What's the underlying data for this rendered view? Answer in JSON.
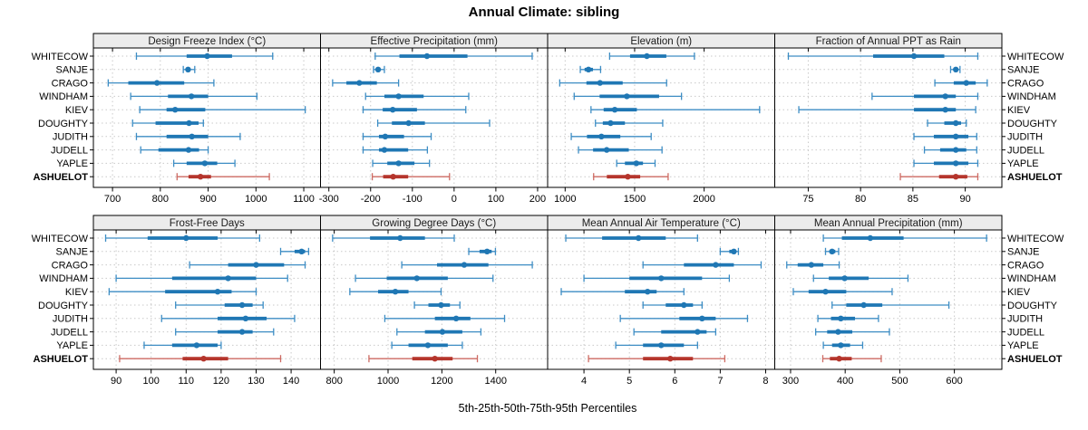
{
  "title": "Annual Climate: sibling",
  "caption": "5th-25th-50th-75th-95th Percentiles",
  "percentile_labels": [
    "5th",
    "25th",
    "50th",
    "75th",
    "95th"
  ],
  "stations": [
    "WHITECOW",
    "SANJE",
    "CRAGO",
    "WINDHAM",
    "KIEV",
    "DOUGHTY",
    "JUDITH",
    "JUDELL",
    "YAPLE",
    "ASHUELOT"
  ],
  "highlight_station": "ASHUELOT",
  "colors": {
    "series_blue": "#1f77b4",
    "series_blue_light": "#3d8dc4",
    "highlight_red": "#b5352c",
    "highlight_red_light": "#cd6a62",
    "grid": "#c9c9c9",
    "strip_bg": "#ececec",
    "border": "#000000",
    "panel_bg": "#ffffff"
  },
  "chart_data": {
    "type": "dotplot-interval-trellis",
    "note": "Each station row shows 5th-25th-50th-75th-95th percentile summary",
    "rows": 2,
    "cols": 4,
    "panels": [
      {
        "title": "Design Freeze Index (°C)",
        "row": 0,
        "col": 0,
        "xdomain": [
          660,
          1135
        ],
        "ticks": [
          700,
          800,
          900,
          1000,
          1100
        ],
        "values": [
          [
            750,
            855,
            898,
            950,
            1035
          ],
          [
            848,
            855,
            858,
            863,
            872
          ],
          [
            691,
            733,
            793,
            850,
            912
          ],
          [
            738,
            816,
            865,
            900,
            1002
          ],
          [
            757,
            813,
            831,
            894,
            1103
          ],
          [
            742,
            790,
            860,
            880,
            890
          ],
          [
            750,
            813,
            866,
            900,
            967
          ],
          [
            759,
            796,
            859,
            881,
            900
          ],
          [
            828,
            855,
            893,
            919,
            956
          ],
          [
            835,
            859,
            884,
            906,
            1028
          ]
        ]
      },
      {
        "title": "Effective Precipitation (mm)",
        "row": 0,
        "col": 1,
        "xdomain": [
          -320,
          224
        ],
        "ticks": [
          -300,
          -200,
          -100,
          0,
          100,
          200
        ],
        "values": [
          [
            -189,
            -131,
            -65,
            32,
            187
          ],
          [
            -193,
            -186,
            -182,
            -177,
            -167
          ],
          [
            -291,
            -258,
            -227,
            -185,
            -133
          ],
          [
            -212,
            -167,
            -133,
            -73,
            35
          ],
          [
            -218,
            -171,
            -147,
            -89,
            28
          ],
          [
            -183,
            -149,
            -109,
            -70,
            85
          ],
          [
            -218,
            -180,
            -165,
            -120,
            -55
          ],
          [
            -218,
            -180,
            -167,
            -110,
            -64
          ],
          [
            -195,
            -160,
            -133,
            -95,
            -59
          ],
          [
            -196,
            -170,
            -146,
            -110,
            -11
          ]
        ]
      },
      {
        "title": "Elevation (m)",
        "row": 0,
        "col": 2,
        "xdomain": [
          874,
          2508
        ],
        "ticks": [
          1000,
          1500,
          2000
        ],
        "values": [
          [
            1320,
            1467,
            1588,
            1728,
            1930
          ],
          [
            1109,
            1140,
            1168,
            1200,
            1255
          ],
          [
            961,
            1153,
            1251,
            1414,
            1730
          ],
          [
            1065,
            1248,
            1444,
            1676,
            1837
          ],
          [
            1186,
            1277,
            1357,
            1516,
            2399
          ],
          [
            1218,
            1271,
            1327,
            1430,
            1702
          ],
          [
            1044,
            1157,
            1261,
            1397,
            1619
          ],
          [
            1096,
            1201,
            1299,
            1458,
            1697
          ],
          [
            1371,
            1430,
            1512,
            1560,
            1647
          ],
          [
            1205,
            1300,
            1451,
            1540,
            1741
          ]
        ]
      },
      {
        "title": "Fraction of Annual PPT as Rain",
        "row": 0,
        "col": 3,
        "xdomain": [
          71.8,
          93.5
        ],
        "ticks": [
          75,
          80,
          85,
          90
        ],
        "values": [
          [
            73.1,
            81.2,
            85.1,
            88,
            91.2
          ],
          [
            88.6,
            88.9,
            89.1,
            89.3,
            89.5
          ],
          [
            87.1,
            88.9,
            90.1,
            91,
            92.1
          ],
          [
            81.1,
            85.1,
            88.1,
            89.1,
            91.2
          ],
          [
            74.1,
            85.1,
            88.1,
            89.1,
            91
          ],
          [
            86.4,
            88,
            89.1,
            89.6,
            90.1
          ],
          [
            85.1,
            87,
            89.1,
            90.3,
            91.1
          ],
          [
            86.1,
            87.6,
            89.1,
            90.1,
            91.1
          ],
          [
            85.1,
            87,
            89.1,
            90.3,
            91.2
          ],
          [
            83.8,
            87.5,
            89.1,
            90.2,
            91.2
          ]
        ]
      },
      {
        "title": "Frost-Free Days",
        "row": 1,
        "col": 0,
        "xdomain": [
          83.5,
          148.4
        ],
        "ticks": [
          90,
          100,
          110,
          120,
          130,
          140
        ],
        "values": [
          [
            87,
            99,
            110,
            119,
            131
          ],
          [
            137,
            141,
            143,
            144,
            145
          ],
          [
            111,
            122,
            130,
            138,
            144
          ],
          [
            90,
            106,
            122,
            130,
            139
          ],
          [
            88,
            104,
            119,
            123,
            130
          ],
          [
            107,
            121,
            126,
            129,
            132
          ],
          [
            103,
            119,
            127,
            133,
            141
          ],
          [
            107,
            119,
            126,
            129,
            135
          ],
          [
            98,
            106,
            113,
            119,
            120
          ],
          [
            91,
            109,
            115,
            122,
            137
          ]
        ]
      },
      {
        "title": "Growing Degree Days (°C)",
        "row": 1,
        "col": 1,
        "xdomain": [
          749,
          1593
        ],
        "ticks": [
          800,
          1000,
          1200,
          1400
        ],
        "values": [
          [
            794,
            933,
            1045,
            1137,
            1246
          ],
          [
            1300,
            1340,
            1368,
            1385,
            1399
          ],
          [
            1051,
            1182,
            1283,
            1373,
            1536
          ],
          [
            879,
            995,
            1107,
            1222,
            1390
          ],
          [
            858,
            963,
            1027,
            1076,
            1197
          ],
          [
            1098,
            1150,
            1197,
            1230,
            1267
          ],
          [
            988,
            1174,
            1253,
            1306,
            1433
          ],
          [
            1033,
            1137,
            1202,
            1276,
            1345
          ],
          [
            1014,
            1076,
            1148,
            1222,
            1276
          ],
          [
            929,
            1090,
            1174,
            1240,
            1332
          ]
        ]
      },
      {
        "title": "Mean Annual Air Temperature (°C)",
        "row": 1,
        "col": 2,
        "xdomain": [
          3.2,
          8.2
        ],
        "ticks": [
          4,
          5,
          6,
          7,
          8
        ],
        "values": [
          [
            3.6,
            4.4,
            5.2,
            5.8,
            6.5
          ],
          [
            7,
            7.2,
            7.3,
            7.35,
            7.4
          ],
          [
            5.3,
            6.2,
            6.9,
            7.3,
            7.9
          ],
          [
            4,
            5,
            5.7,
            6.6,
            7.2
          ],
          [
            3.5,
            4.9,
            5.4,
            5.6,
            6.2
          ],
          [
            5.3,
            5.8,
            6.2,
            6.4,
            6.6
          ],
          [
            4.8,
            6.1,
            6.6,
            6.9,
            7.6
          ],
          [
            5.1,
            5.7,
            6.5,
            6.7,
            6.9
          ],
          [
            4.7,
            5.3,
            5.7,
            6.2,
            6.5
          ],
          [
            4.1,
            5.3,
            5.9,
            6.4,
            7.1
          ]
        ]
      },
      {
        "title": "Mean Annual Precipitation (mm)",
        "row": 1,
        "col": 3,
        "xdomain": [
          271,
          687
        ],
        "ticks": [
          300,
          400,
          500,
          600
        ],
        "values": [
          [
            360,
            394,
            446,
            507,
            659
          ],
          [
            364,
            371,
            376,
            382,
            388
          ],
          [
            293,
            313,
            338,
            360,
            389
          ],
          [
            342,
            370,
            399,
            443,
            515
          ],
          [
            305,
            333,
            364,
            402,
            486
          ],
          [
            376,
            402,
            434,
            468,
            590
          ],
          [
            350,
            374,
            392,
            418,
            461
          ],
          [
            346,
            367,
            387,
            413,
            481
          ],
          [
            360,
            376,
            392,
            409,
            432
          ],
          [
            359,
            372,
            389,
            412,
            466
          ]
        ]
      }
    ]
  }
}
